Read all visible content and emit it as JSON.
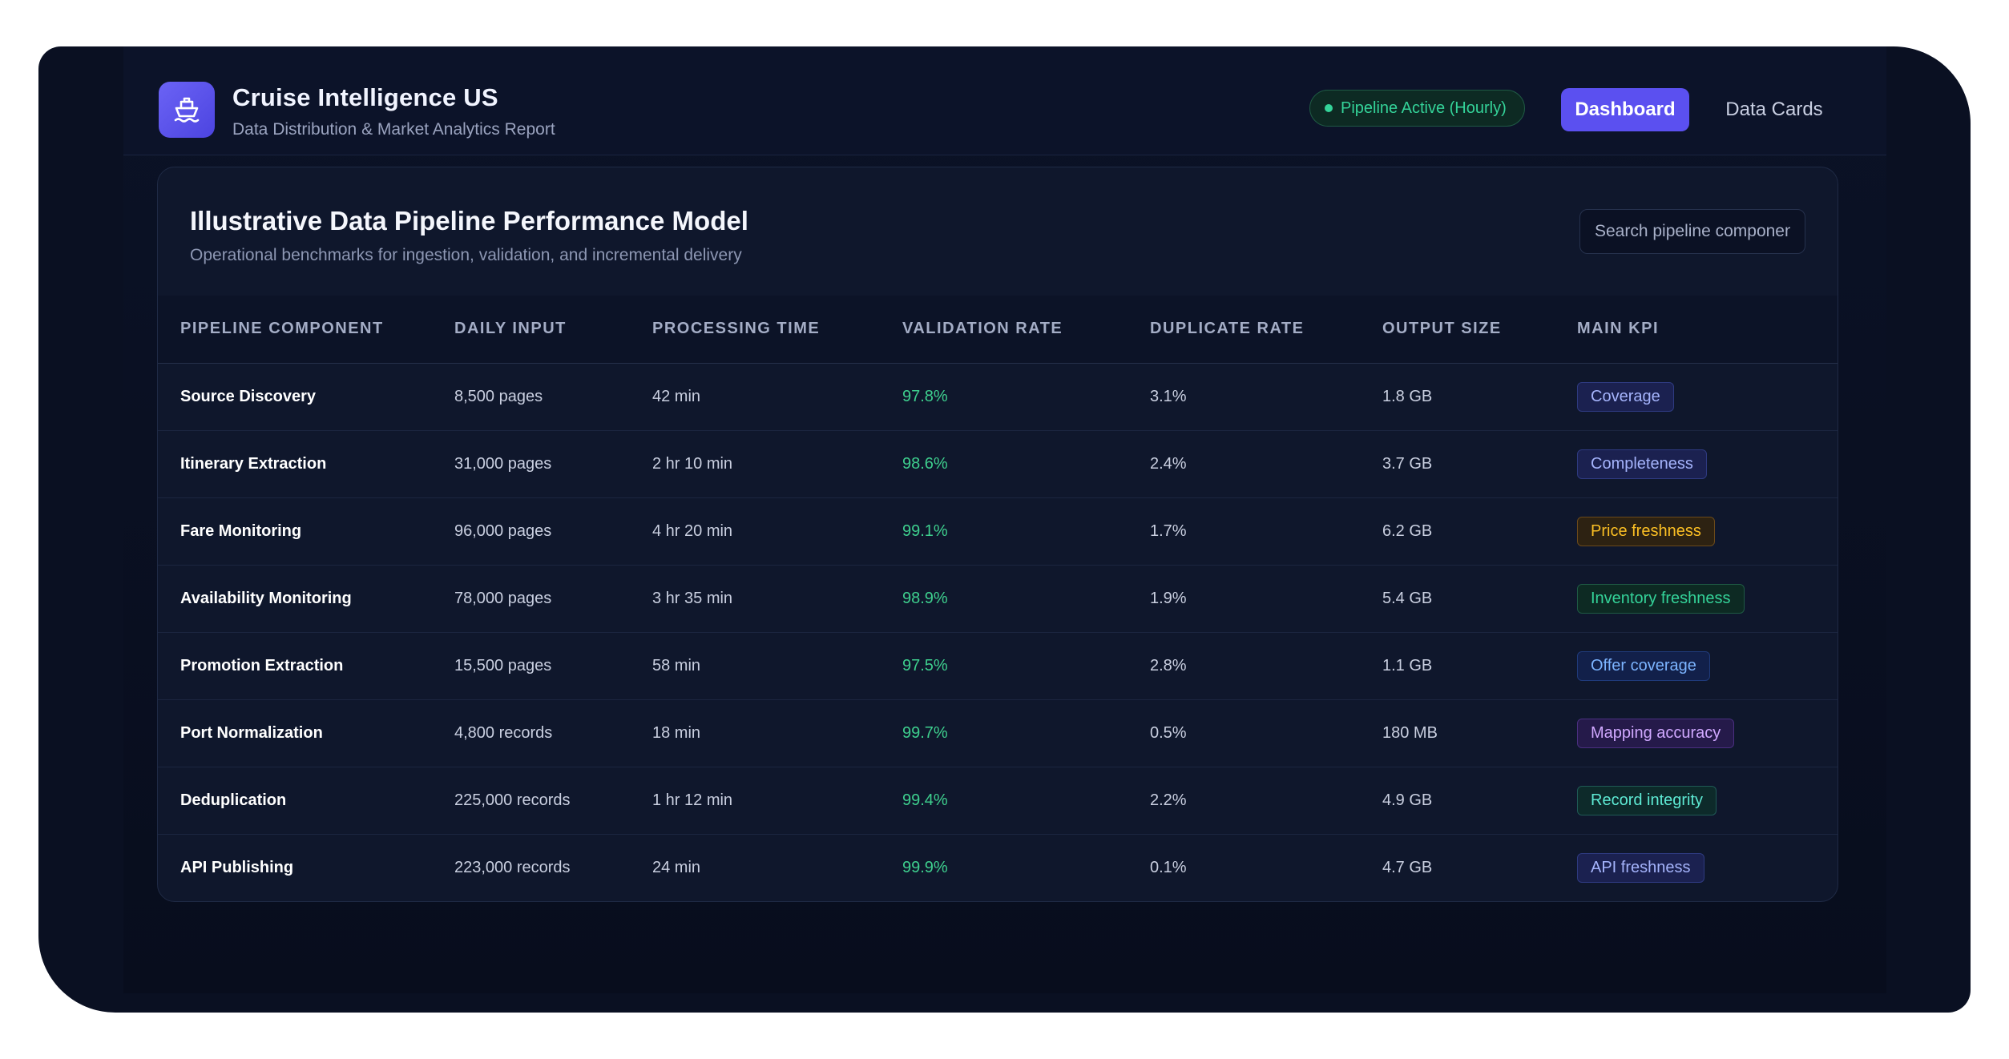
{
  "app": {
    "title": "Cruise Intelligence US",
    "subtitle": "Data Distribution & Market Analytics Report",
    "logo_icon": "ship-icon"
  },
  "header": {
    "status": "Pipeline Active (Hourly)",
    "nav": {
      "dashboard": "Dashboard",
      "data_cards": "Data Cards"
    }
  },
  "card": {
    "title": "Illustrative Data Pipeline Performance Model",
    "subtitle": "Operational benchmarks for ingestion, validation, and incremental delivery",
    "search_placeholder": "Search pipeline components..."
  },
  "table": {
    "headers": [
      "PIPELINE COMPONENT",
      "DAILY INPUT",
      "PROCESSING TIME",
      "VALIDATION RATE",
      "DUPLICATE RATE",
      "OUTPUT SIZE",
      "MAIN KPI"
    ],
    "rows": [
      {
        "component": "Source Discovery",
        "input": "8,500 pages",
        "time": "42 min",
        "validation": "97.8%",
        "duplicate": "3.1%",
        "output": "1.8 GB",
        "kpi": "Coverage",
        "kpi_color": "indigo"
      },
      {
        "component": "Itinerary Extraction",
        "input": "31,000 pages",
        "time": "2 hr 10 min",
        "validation": "98.6%",
        "duplicate": "2.4%",
        "output": "3.7 GB",
        "kpi": "Completeness",
        "kpi_color": "indigo"
      },
      {
        "component": "Fare Monitoring",
        "input": "96,000 pages",
        "time": "4 hr 20 min",
        "validation": "99.1%",
        "duplicate": "1.7%",
        "output": "6.2 GB",
        "kpi": "Price freshness",
        "kpi_color": "amber"
      },
      {
        "component": "Availability Monitoring",
        "input": "78,000 pages",
        "time": "3 hr 35 min",
        "validation": "98.9%",
        "duplicate": "1.9%",
        "output": "5.4 GB",
        "kpi": "Inventory freshness",
        "kpi_color": "green"
      },
      {
        "component": "Promotion Extraction",
        "input": "15,500 pages",
        "time": "58 min",
        "validation": "97.5%",
        "duplicate": "2.8%",
        "output": "1.1 GB",
        "kpi": "Offer coverage",
        "kpi_color": "blue"
      },
      {
        "component": "Port Normalization",
        "input": "4,800 records",
        "time": "18 min",
        "validation": "99.7%",
        "duplicate": "0.5%",
        "output": "180 MB",
        "kpi": "Mapping accuracy",
        "kpi_color": "purple"
      },
      {
        "component": "Deduplication",
        "input": "225,000 records",
        "time": "1 hr 12 min",
        "validation": "99.4%",
        "duplicate": "2.2%",
        "output": "4.9 GB",
        "kpi": "Record integrity",
        "kpi_color": "teal"
      },
      {
        "component": "API Publishing",
        "input": "223,000 records",
        "time": "24 min",
        "validation": "99.9%",
        "duplicate": "0.1%",
        "output": "4.7 GB",
        "kpi": "API freshness",
        "kpi_color": "indigo"
      }
    ]
  }
}
